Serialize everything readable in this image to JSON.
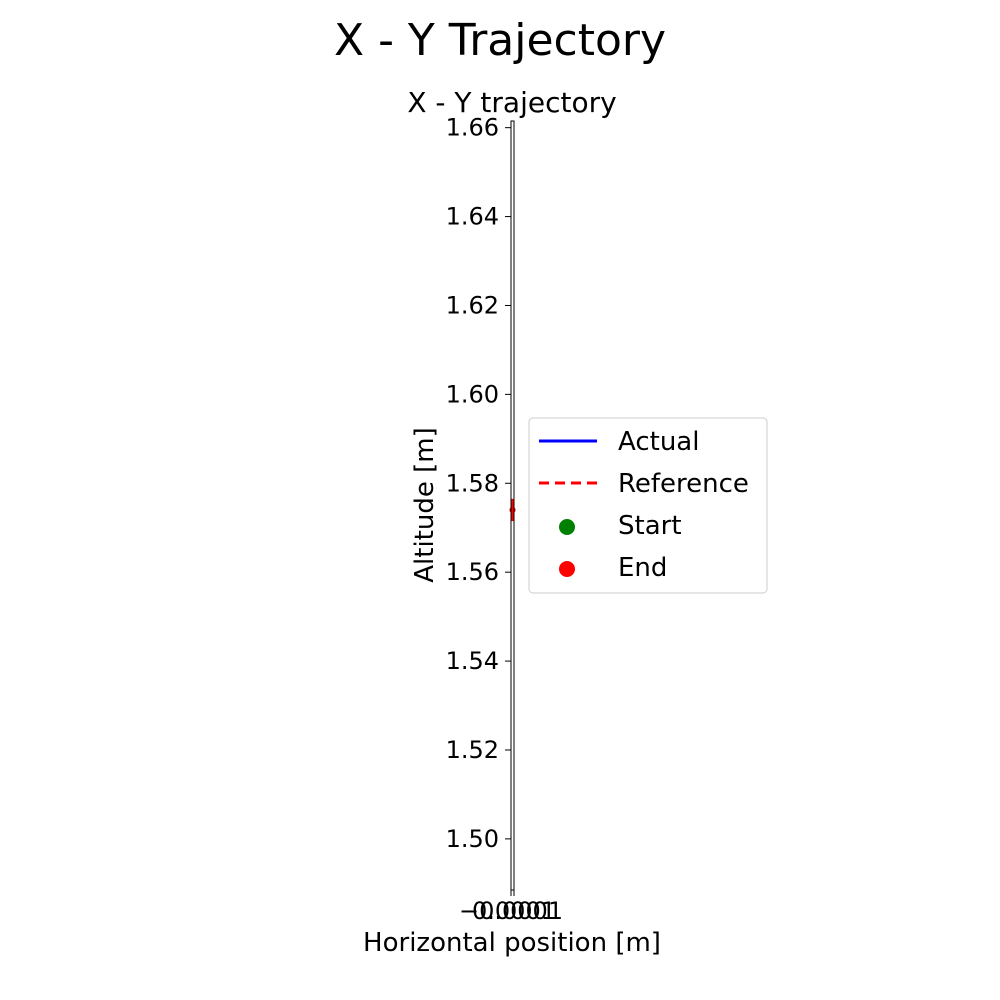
{
  "figure_title": "X - Y Trajectory",
  "chart_data": {
    "type": "line",
    "title": "X - Y trajectory",
    "xlabel": "Horizontal position [m]",
    "ylabel": "Altitude [m]",
    "xlim": [
      -0.0001,
      0.0001
    ],
    "ylim": [
      1.4885,
      1.6615
    ],
    "x_ticks": [
      -0.0001,
      0.0001
    ],
    "x_tick_labels": [
      "−0.0001",
      "0.0001"
    ],
    "y_ticks": [
      1.5,
      1.52,
      1.54,
      1.56,
      1.58,
      1.6,
      1.62,
      1.64,
      1.66
    ],
    "y_tick_labels": [
      "1.50",
      "1.52",
      "1.54",
      "1.56",
      "1.58",
      "1.60",
      "1.62",
      "1.64",
      "1.66"
    ],
    "grid": false,
    "legend_position": "right",
    "series": [
      {
        "name": "Actual",
        "kind": "line",
        "style": "solid",
        "color": "#0000ff",
        "x": [
          0,
          0
        ],
        "y": [
          1.574,
          1.574
        ]
      },
      {
        "name": "Reference",
        "kind": "line",
        "style": "dashed",
        "color": "#ff0000",
        "x": [
          0,
          0
        ],
        "y": [
          1.5715,
          1.5765
        ]
      },
      {
        "name": "Start",
        "kind": "marker",
        "color": "#008000",
        "x": [
          0
        ],
        "y": [
          1.574
        ]
      },
      {
        "name": "End",
        "kind": "marker",
        "color": "#ff0000",
        "x": [
          0
        ],
        "y": [
          1.574
        ]
      }
    ]
  }
}
